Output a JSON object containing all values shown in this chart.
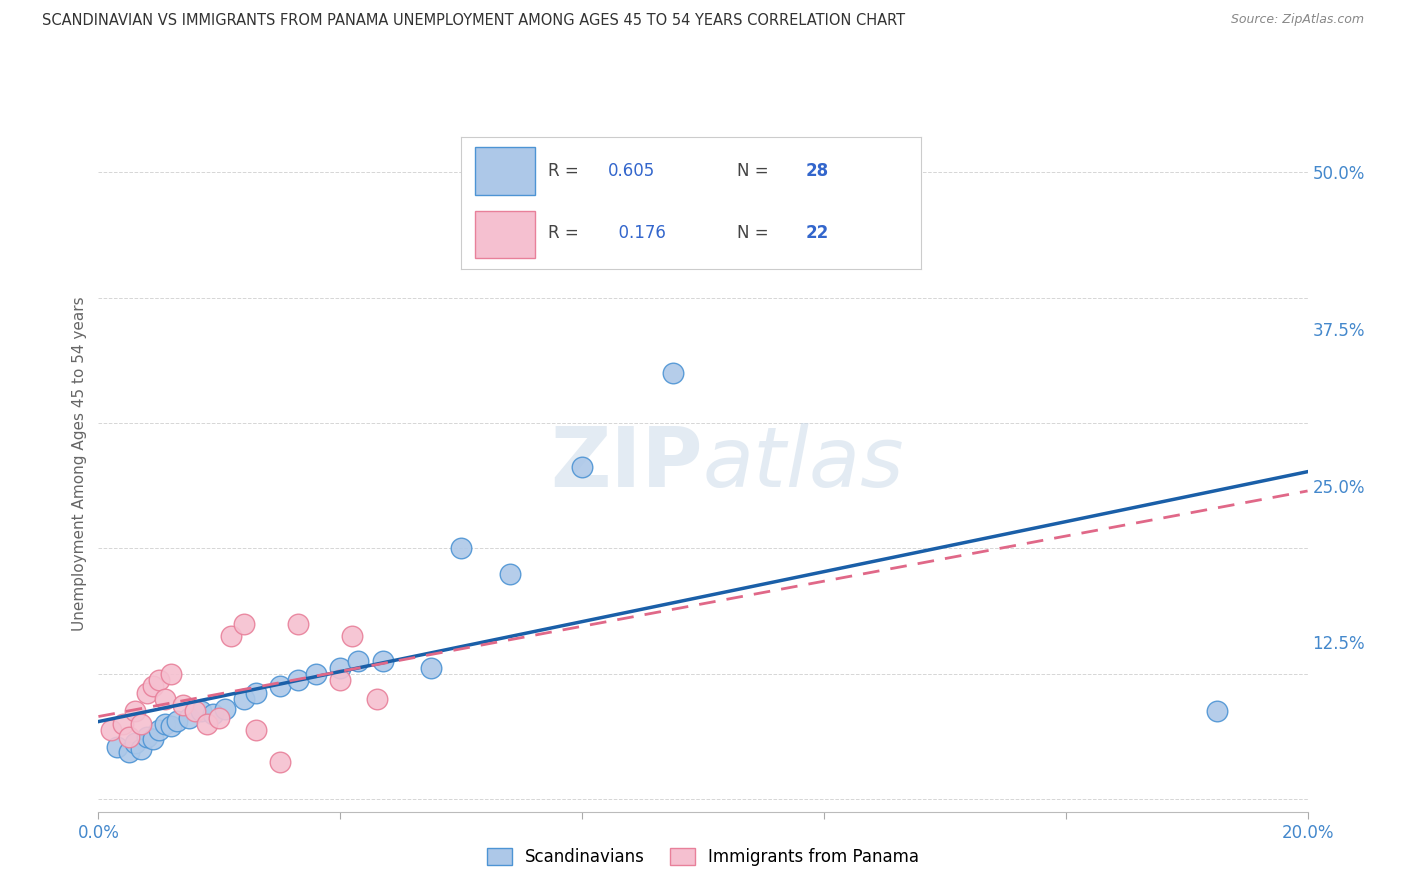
{
  "title": "SCANDINAVIAN VS IMMIGRANTS FROM PANAMA UNEMPLOYMENT AMONG AGES 45 TO 54 YEARS CORRELATION CHART",
  "source": "Source: ZipAtlas.com",
  "ylabel": "Unemployment Among Ages 45 to 54 years",
  "xlim": [
    0.0,
    0.2
  ],
  "ylim": [
    -0.01,
    0.545
  ],
  "yticks": [
    0.0,
    0.125,
    0.25,
    0.375,
    0.5
  ],
  "ytick_labels": [
    "",
    "12.5%",
    "25.0%",
    "37.5%",
    "50.0%"
  ],
  "xticks": [
    0.0,
    0.04,
    0.08,
    0.12,
    0.16,
    0.2
  ],
  "xtick_labels": [
    "0.0%",
    "",
    "",
    "",
    "",
    "20.0%"
  ],
  "scandinavians_x": [
    0.003,
    0.005,
    0.006,
    0.007,
    0.008,
    0.009,
    0.01,
    0.011,
    0.012,
    0.013,
    0.015,
    0.017,
    0.019,
    0.021,
    0.024,
    0.026,
    0.03,
    0.033,
    0.036,
    0.04,
    0.043,
    0.047,
    0.055,
    0.06,
    0.068,
    0.08,
    0.095,
    0.185
  ],
  "scandinavians_y": [
    0.042,
    0.038,
    0.045,
    0.04,
    0.05,
    0.048,
    0.055,
    0.06,
    0.058,
    0.062,
    0.065,
    0.07,
    0.068,
    0.072,
    0.08,
    0.085,
    0.09,
    0.095,
    0.1,
    0.105,
    0.11,
    0.11,
    0.105,
    0.2,
    0.18,
    0.265,
    0.34,
    0.07
  ],
  "panama_x": [
    0.002,
    0.004,
    0.005,
    0.006,
    0.007,
    0.008,
    0.009,
    0.01,
    0.011,
    0.012,
    0.014,
    0.016,
    0.018,
    0.02,
    0.022,
    0.024,
    0.026,
    0.03,
    0.033,
    0.04,
    0.042,
    0.046
  ],
  "panama_y": [
    0.055,
    0.06,
    0.05,
    0.07,
    0.06,
    0.085,
    0.09,
    0.095,
    0.08,
    0.1,
    0.075,
    0.07,
    0.06,
    0.065,
    0.13,
    0.14,
    0.055,
    0.03,
    0.14,
    0.095,
    0.13,
    0.08
  ],
  "R_scand": 0.605,
  "N_scand": 28,
  "R_panama": 0.176,
  "N_panama": 22,
  "scand_color": "#adc8e8",
  "scand_edge_color": "#4d94d4",
  "scand_line_color": "#1a5fa8",
  "panama_color": "#f5c0d0",
  "panama_edge_color": "#e8809a",
  "panama_line_color": "#e06888",
  "watermark_color": "#c8d8e8",
  "background_color": "#ffffff",
  "grid_color": "#cccccc",
  "title_color": "#333333",
  "source_color": "#888888",
  "tick_color": "#4488cc",
  "ylabel_color": "#666666"
}
